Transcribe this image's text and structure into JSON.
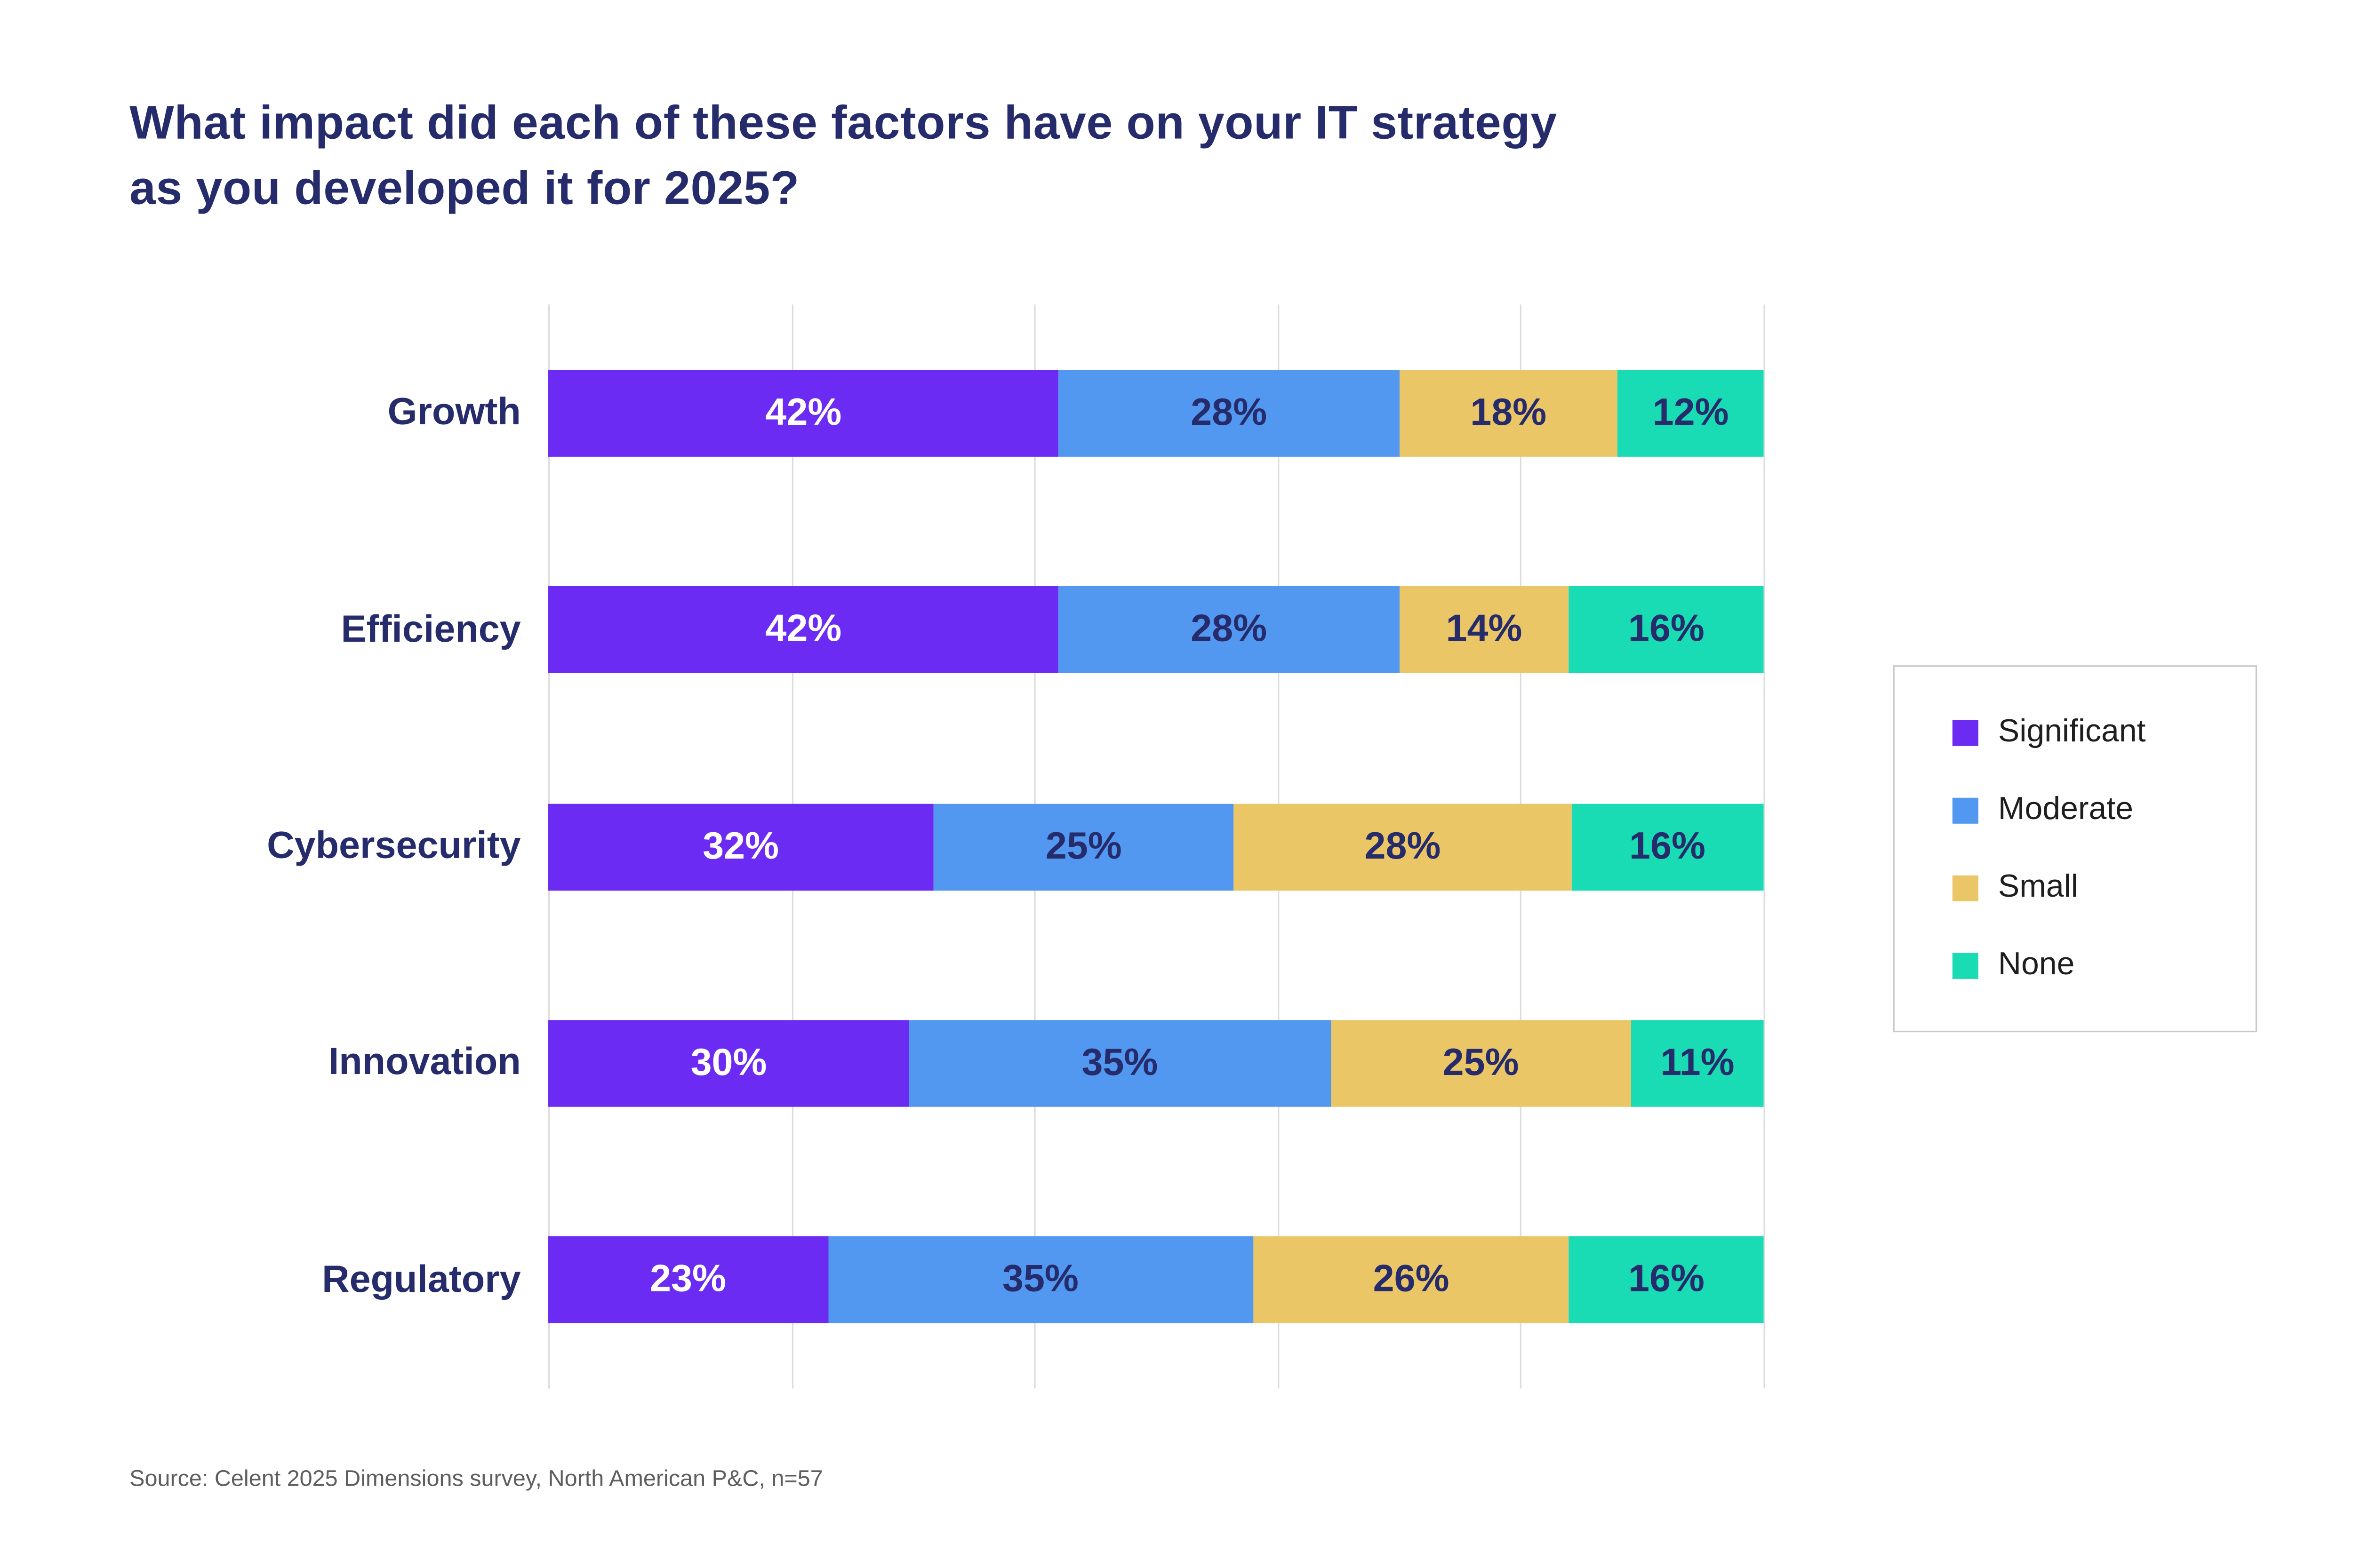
{
  "header": {
    "title_line1": "What impact did each of these factors have on your IT strategy",
    "title_line2": "as you developed it for 2025?"
  },
  "source": "Source: Celent 2025 Dimensions survey, North American P&C, n=57",
  "colors": {
    "title_text": "#252B6B",
    "category_label_text": "#252B6B",
    "gridline": "#DCDCDC",
    "legend_border": "#C8C8C8",
    "legend_text": "#1E1E1E",
    "source_text": "#5E5E5E",
    "background": "#FFFFFF"
  },
  "chart_data": {
    "type": "bar",
    "variant": "horizontal-stacked",
    "title": "What impact did each of these factors have on your IT strategy as you developed it for 2025?",
    "categories": [
      "Growth",
      "Efficiency",
      "Cybersecurity",
      "Innovation",
      "Regulatory"
    ],
    "series": [
      {
        "name": "Significant",
        "color": "#6C2BF2",
        "label_color": "#FFFFFF",
        "values": [
          42,
          42,
          32,
          30,
          23
        ]
      },
      {
        "name": "Moderate",
        "color": "#5297F0",
        "label_color": "#252B6B",
        "values": [
          28,
          28,
          25,
          35,
          35
        ]
      },
      {
        "name": "Small",
        "color": "#EBC666",
        "label_color": "#252B6B",
        "values": [
          18,
          14,
          28,
          25,
          26
        ]
      },
      {
        "name": "None",
        "color": "#19DCB4",
        "label_color": "#252B6B",
        "values": [
          12,
          16,
          16,
          11,
          16
        ]
      }
    ],
    "value_suffix": "%",
    "xlim": [
      0,
      100
    ],
    "gridline_interval": 20,
    "grid": true,
    "legend_position": "right",
    "legend_entries": [
      "Significant",
      "Moderate",
      "Small",
      "None"
    ]
  }
}
